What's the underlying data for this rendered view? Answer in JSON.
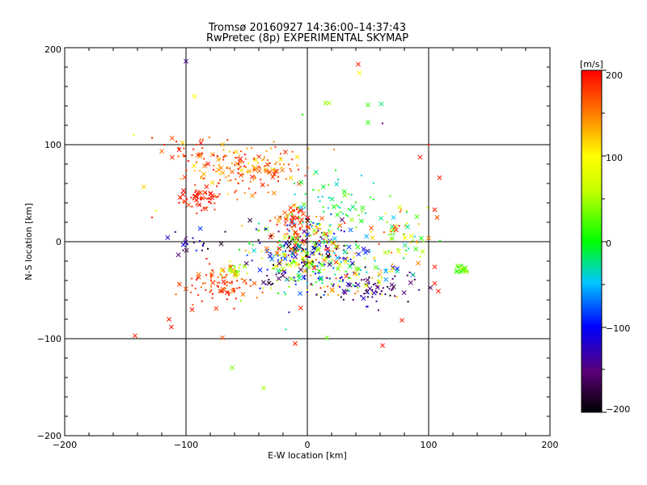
{
  "chart_data": {
    "type": "scatter",
    "title": "Tromsø 20160927 14:36:00–14:37:43",
    "subtitle": "RwPretec (8p) EXPERIMENTAL SKYMAP",
    "xlabel": "E-W location [km]",
    "ylabel": "N-S location [km]",
    "xlim": [
      -200,
      200
    ],
    "ylim": [
      -200,
      200
    ],
    "xticks": [
      "−200",
      "−100",
      "0",
      "100",
      "200"
    ],
    "yticks": [
      "−200",
      "−100",
      "0",
      "100",
      "200"
    ],
    "grid": "major lines at -100, 0, 100",
    "markers": "small dots (meteors) and x symbols; colour = radial velocity",
    "colorbar": {
      "label": "[m/s]",
      "ticks": [
        "200",
        "100",
        "0",
        "−100",
        "−200"
      ],
      "range": [
        -200,
        200
      ],
      "colormap": "rainbow: black → purple → blue → cyan → green → yellow → orange → red"
    },
    "clusters": [
      {
        "name": "NW red/orange band",
        "cx": -50,
        "cy": 75,
        "sx": 25,
        "sy": 12,
        "vmin": 110,
        "vmax": 200,
        "n": 180
      },
      {
        "name": "W red cluster",
        "cx": -88,
        "cy": 45,
        "sx": 8,
        "sy": 6,
        "vmin": 170,
        "vmax": 200,
        "n": 60
      },
      {
        "name": "upper left fringe",
        "cx": -100,
        "cy": 95,
        "sx": 12,
        "sy": 8,
        "vmin": 150,
        "vmax": 200,
        "n": 25
      },
      {
        "name": "central mixed",
        "cx": -5,
        "cy": -10,
        "sx": 22,
        "sy": 20,
        "vmin": -200,
        "vmax": 200,
        "n": 420
      },
      {
        "name": "central red core",
        "cx": -8,
        "cy": 20,
        "sx": 6,
        "sy": 10,
        "vmin": 150,
        "vmax": 200,
        "n": 50
      },
      {
        "name": "SW red cluster",
        "cx": -75,
        "cy": -45,
        "sx": 14,
        "sy": 10,
        "vmin": 150,
        "vmax": 200,
        "n": 90
      },
      {
        "name": "SW green/yellow",
        "cx": -58,
        "cy": -30,
        "sx": 5,
        "sy": 4,
        "vmin": 20,
        "vmax": 110,
        "n": 25
      },
      {
        "name": "SE black/blue",
        "cx": 55,
        "cy": -50,
        "sx": 18,
        "sy": 8,
        "vmin": -200,
        "vmax": -120,
        "n": 70
      },
      {
        "name": "SE mixed",
        "cx": 40,
        "cy": -35,
        "sx": 18,
        "sy": 12,
        "vmin": -150,
        "vmax": 150,
        "n": 80
      },
      {
        "name": "E mixed",
        "cx": 75,
        "cy": 5,
        "sx": 12,
        "sy": 15,
        "vmin": -50,
        "vmax": 200,
        "n": 70
      },
      {
        "name": "NE cyan/green",
        "cx": 25,
        "cy": 40,
        "sx": 20,
        "sy": 15,
        "vmin": -50,
        "vmax": 50,
        "n": 60
      },
      {
        "name": "far E green",
        "cx": 127,
        "cy": -28,
        "sx": 4,
        "sy": 3,
        "vmin": 10,
        "vmax": 60,
        "n": 20
      },
      {
        "name": "W black/blue",
        "cx": -95,
        "cy": 0,
        "sx": 10,
        "sy": 8,
        "vmin": -200,
        "vmax": -80,
        "n": 20
      }
    ],
    "outliers": [
      {
        "x": -100,
        "y": 186,
        "v": -140,
        "m": "x"
      },
      {
        "x": -93,
        "y": 150,
        "v": 100,
        "m": "x"
      },
      {
        "x": 42,
        "y": 183,
        "v": 190,
        "m": "x"
      },
      {
        "x": 43,
        "y": 174,
        "v": 100,
        "m": "x"
      },
      {
        "x": 15,
        "y": 143,
        "v": 40,
        "m": "x"
      },
      {
        "x": 18,
        "y": 143,
        "v": 50,
        "m": "x"
      },
      {
        "x": 50,
        "y": 141,
        "v": 20,
        "m": "x"
      },
      {
        "x": 61,
        "y": 142,
        "v": -20,
        "m": "x"
      },
      {
        "x": 50,
        "y": 123,
        "v": 10,
        "m": "x"
      },
      {
        "x": 62,
        "y": 122,
        "v": -150,
        "m": "dot"
      },
      {
        "x": -143,
        "y": 110,
        "v": 80,
        "m": "dot"
      },
      {
        "x": 93,
        "y": 87,
        "v": 190,
        "m": "x"
      },
      {
        "x": 109,
        "y": 66,
        "v": 190,
        "m": "x"
      },
      {
        "x": 100,
        "y": 100,
        "v": 190,
        "m": "dot"
      },
      {
        "x": -142,
        "y": -97,
        "v": 190,
        "m": "x"
      },
      {
        "x": -62,
        "y": -130,
        "v": 40,
        "m": "x"
      },
      {
        "x": -36,
        "y": -151,
        "v": 50,
        "m": "x"
      },
      {
        "x": -10,
        "y": -105,
        "v": 190,
        "m": "x"
      },
      {
        "x": 62,
        "y": -107,
        "v": 190,
        "m": "x"
      },
      {
        "x": 78,
        "y": -81,
        "v": 190,
        "m": "x"
      },
      {
        "x": 16,
        "y": -99,
        "v": 30,
        "m": "x"
      },
      {
        "x": -70,
        "y": -99,
        "v": 170,
        "m": "x"
      },
      {
        "x": -114,
        "y": -80,
        "v": 190,
        "m": "x"
      },
      {
        "x": -112,
        "y": -88,
        "v": 190,
        "m": "x"
      },
      {
        "x": -95,
        "y": -70,
        "v": 190,
        "m": "x"
      },
      {
        "x": 105,
        "y": 33,
        "v": 190,
        "m": "x"
      },
      {
        "x": 105,
        "y": -26,
        "v": 190,
        "m": "x"
      },
      {
        "x": 105,
        "y": -43,
        "v": 190,
        "m": "x"
      },
      {
        "x": 108,
        "y": -51,
        "v": 190,
        "m": "x"
      },
      {
        "x": 107,
        "y": 25,
        "v": 170,
        "m": "x"
      },
      {
        "x": -128,
        "y": 25,
        "v": 190,
        "m": "dot"
      },
      {
        "x": -125,
        "y": 32,
        "v": 90,
        "m": "dot"
      },
      {
        "x": -118,
        "y": 100,
        "v": 190,
        "m": "dot"
      },
      {
        "x": -128,
        "y": 107,
        "v": 190,
        "m": "dot"
      },
      {
        "x": -4,
        "y": 131,
        "v": 0,
        "m": "dot"
      },
      {
        "x": 22,
        "y": 95,
        "v": 150,
        "m": "dot"
      }
    ]
  }
}
